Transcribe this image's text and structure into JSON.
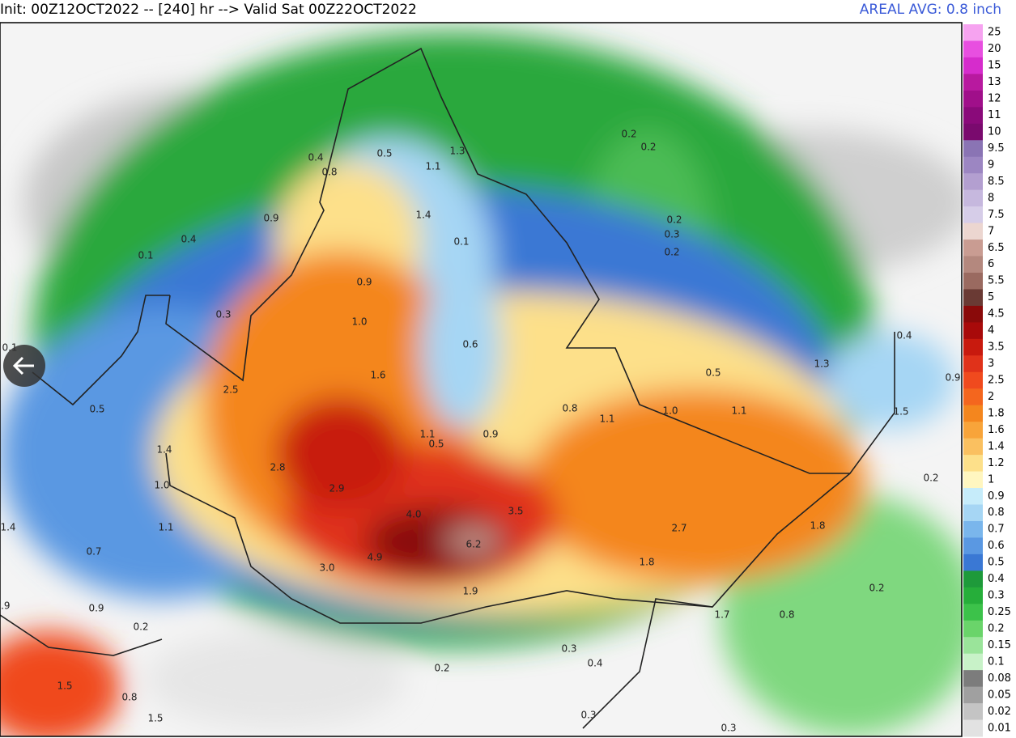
{
  "header": {
    "init_text": "Init: 00Z12OCT2022 -- [240] hr --> Valid Sat 00Z22OCT2022",
    "areal_avg": "AREAL AVG: 0.8 inch"
  },
  "legend": {
    "labels": [
      "25",
      "20",
      "15",
      "13",
      "12",
      "11",
      "10",
      "9.5",
      "9",
      "8.5",
      "8",
      "7.5",
      "7",
      "6.5",
      "6",
      "5.5",
      "5",
      "4.5",
      "4",
      "3.5",
      "3",
      "2.5",
      "2",
      "1.8",
      "1.6",
      "1.4",
      "1.2",
      "1",
      "0.9",
      "0.8",
      "0.7",
      "0.6",
      "0.5",
      "0.4",
      "0.3",
      "0.25",
      "0.2",
      "0.15",
      "0.1",
      "0.08",
      "0.05",
      "0.02",
      "0.01"
    ],
    "colors": [
      "#f6a3f0",
      "#e84fe0",
      "#d62ccc",
      "#b8199f",
      "#a00f8a",
      "#8a0a7a",
      "#7a0a6e",
      "#8a74b4",
      "#9c86c2",
      "#b39fd0",
      "#c6b8de",
      "#d6cde8",
      "#ecd6d0",
      "#c99c92",
      "#b4887e",
      "#9a6a60",
      "#6a3a34",
      "#8a0a0a",
      "#a80a0a",
      "#c81a0e",
      "#e0321a",
      "#f04a1e",
      "#f4661e",
      "#f4861e",
      "#f8a43a",
      "#fac060",
      "#fde08a",
      "#fff6c0",
      "#c6ecfa",
      "#a6d6f4",
      "#7ab6ec",
      "#5a98e2",
      "#3a78d4",
      "#1e9a3a",
      "#26ae3a",
      "#3cc24a",
      "#6ad46a",
      "#9ae49a",
      "#c8f2c8",
      "#7c7c7c",
      "#a0a0a0",
      "#c4c4c4",
      "#e2e2e2"
    ]
  },
  "map_labels": [
    "0.4",
    "0.8",
    "0.5",
    "1.3",
    "1.1",
    "0.9",
    "1.4",
    "0.4",
    "0.1",
    "0.1",
    "0.9",
    "0.3",
    "1.0",
    "0.6",
    "1.6",
    "2.5",
    "0.5",
    "0.8",
    "1.1",
    "1.0",
    "1.1",
    "1.3",
    "0.5",
    "0.9",
    "1.5",
    "1.1",
    "0.5",
    "0.9",
    "1.4",
    "2.8",
    "1.0",
    "2.9",
    "4.0",
    "3.5",
    "0.2",
    "1.8",
    "2.7",
    "6.2",
    "1.4",
    "1.1",
    "0.7",
    "4.9",
    "3.0",
    "1.8",
    "1.9",
    "0.2",
    "1.7",
    "0.8",
    "0.9",
    "0.2",
    "0.9",
    "0.3",
    "0.4",
    "0.2",
    "1.5",
    "0.8",
    "1.5",
    "0.3",
    "0.3",
    "0.2",
    "0.2",
    "0.2",
    "0.3",
    "0.2",
    "0.1",
    "0.4"
  ]
}
